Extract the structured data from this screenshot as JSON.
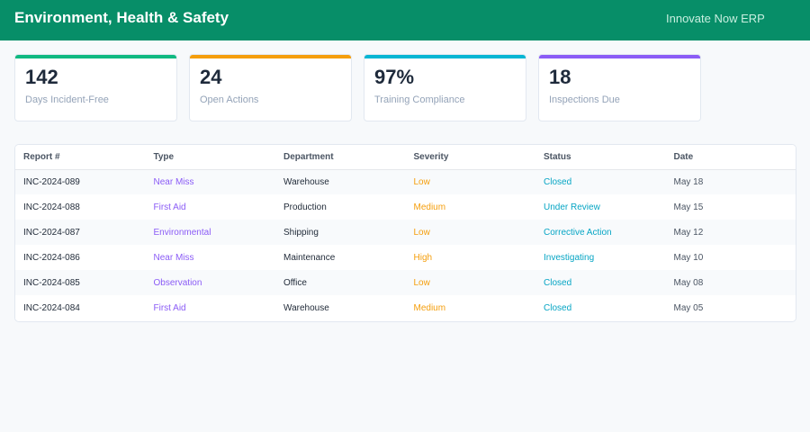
{
  "header": {
    "title": "Environment, Health & Safety",
    "brand": "Innovate Now ERP"
  },
  "colors": {
    "header_bg": "#078e68",
    "card_green": "#10b981",
    "card_orange": "#f59e0b",
    "card_cyan": "#06b6d4",
    "card_purple": "#8b5cf6"
  },
  "stats": [
    {
      "value": "142",
      "label": "Days Incident-Free",
      "color": "#10b981"
    },
    {
      "value": "24",
      "label": "Open Actions",
      "color": "#f59e0b"
    },
    {
      "value": "97%",
      "label": "Training Compliance",
      "color": "#06b6d4"
    },
    {
      "value": "18",
      "label": "Inspections Due",
      "color": "#8b5cf6"
    }
  ],
  "table": {
    "columns": [
      "Report #",
      "Type",
      "Department",
      "Severity",
      "Status",
      "Date"
    ],
    "rows": [
      {
        "report": "INC-2024-089",
        "type": "Near Miss",
        "department": "Warehouse",
        "severity": "Low",
        "status": "Closed",
        "date": "May 18"
      },
      {
        "report": "INC-2024-088",
        "type": "First Aid",
        "department": "Production",
        "severity": "Medium",
        "status": "Under Review",
        "date": "May 15"
      },
      {
        "report": "INC-2024-087",
        "type": "Environmental",
        "department": "Shipping",
        "severity": "Low",
        "status": "Corrective Action",
        "date": "May 12"
      },
      {
        "report": "INC-2024-086",
        "type": "Near Miss",
        "department": "Maintenance",
        "severity": "High",
        "status": "Investigating",
        "date": "May 10"
      },
      {
        "report": "INC-2024-085",
        "type": "Observation",
        "department": "Office",
        "severity": "Low",
        "status": "Closed",
        "date": "May 08"
      },
      {
        "report": "INC-2024-084",
        "type": "First Aid",
        "department": "Warehouse",
        "severity": "Medium",
        "status": "Closed",
        "date": "May 05"
      }
    ]
  }
}
